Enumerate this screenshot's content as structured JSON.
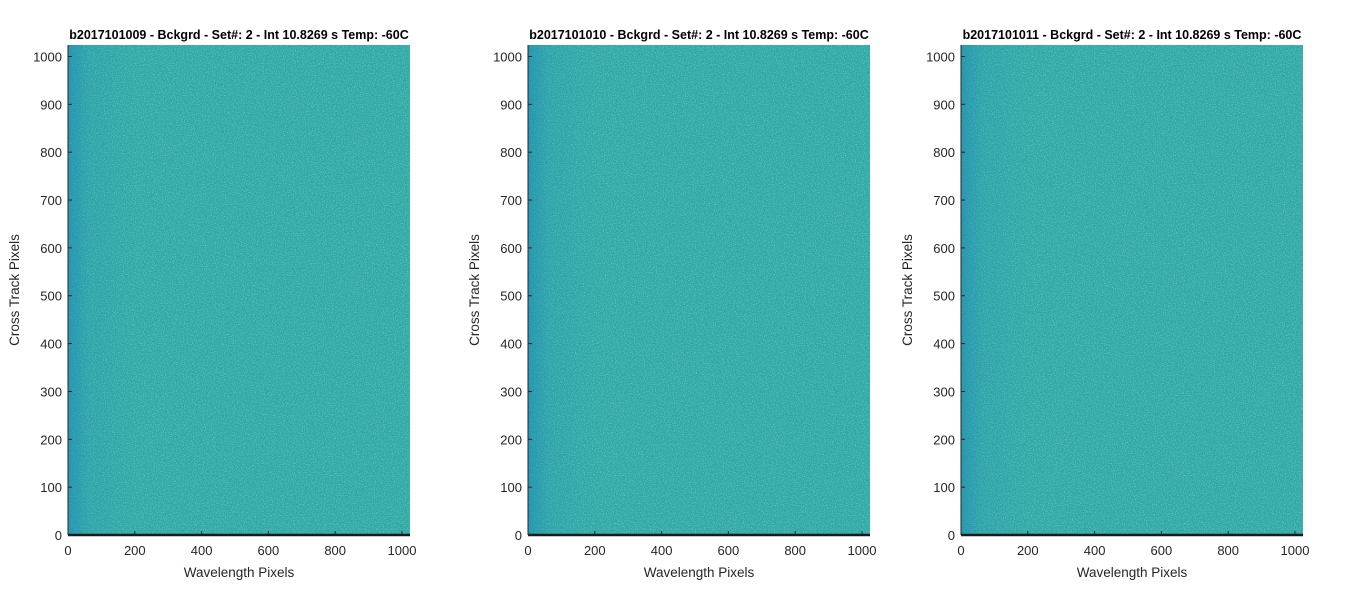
{
  "figure": {
    "background": "#ffffff"
  },
  "colors": {
    "image_base": "#2fa8a8",
    "image_dark": "#1e8fb3",
    "image_light": "#6dc388",
    "axis_line": "#262626",
    "bottom_line": "#1a1a1a"
  },
  "chart_data": [
    {
      "type": "heatmap",
      "title": "b2017101009 - Bckgrd - Set#: 2 - Int 10.8269 s Temp: -60C",
      "xlabel": "Wavelength Pixels",
      "ylabel": "Cross Track Pixels",
      "xlim": [
        0,
        1024
      ],
      "ylim": [
        0,
        1024
      ],
      "xticks": [
        0,
        200,
        400,
        600,
        800,
        1000
      ],
      "yticks": [
        0,
        100,
        200,
        300,
        400,
        500,
        600,
        700,
        800,
        900,
        1000
      ],
      "colormap": "parula",
      "description_of_values": "uniform background noise, mid-range"
    },
    {
      "type": "heatmap",
      "title": "b2017101010 - Bckgrd - Set#: 2 - Int 10.8269 s Temp: -60C",
      "xlabel": "Wavelength Pixels",
      "ylabel": "Cross Track Pixels",
      "xlim": [
        0,
        1024
      ],
      "ylim": [
        0,
        1024
      ],
      "xticks": [
        0,
        200,
        400,
        600,
        800,
        1000
      ],
      "yticks": [
        0,
        100,
        200,
        300,
        400,
        500,
        600,
        700,
        800,
        900,
        1000
      ],
      "colormap": "parula",
      "description_of_values": "uniform background noise, mid-range"
    },
    {
      "type": "heatmap",
      "title": "b2017101011 - Bckgrd - Set#: 2 - Int 10.8269 s Temp: -60C",
      "xlabel": "Wavelength Pixels",
      "ylabel": "Cross Track Pixels",
      "xlim": [
        0,
        1024
      ],
      "ylim": [
        0,
        1024
      ],
      "xticks": [
        0,
        200,
        400,
        600,
        800,
        1000
      ],
      "yticks": [
        0,
        100,
        200,
        300,
        400,
        500,
        600,
        700,
        800,
        900,
        1000
      ],
      "colormap": "parula",
      "description_of_values": "uniform background noise, mid-range"
    }
  ]
}
